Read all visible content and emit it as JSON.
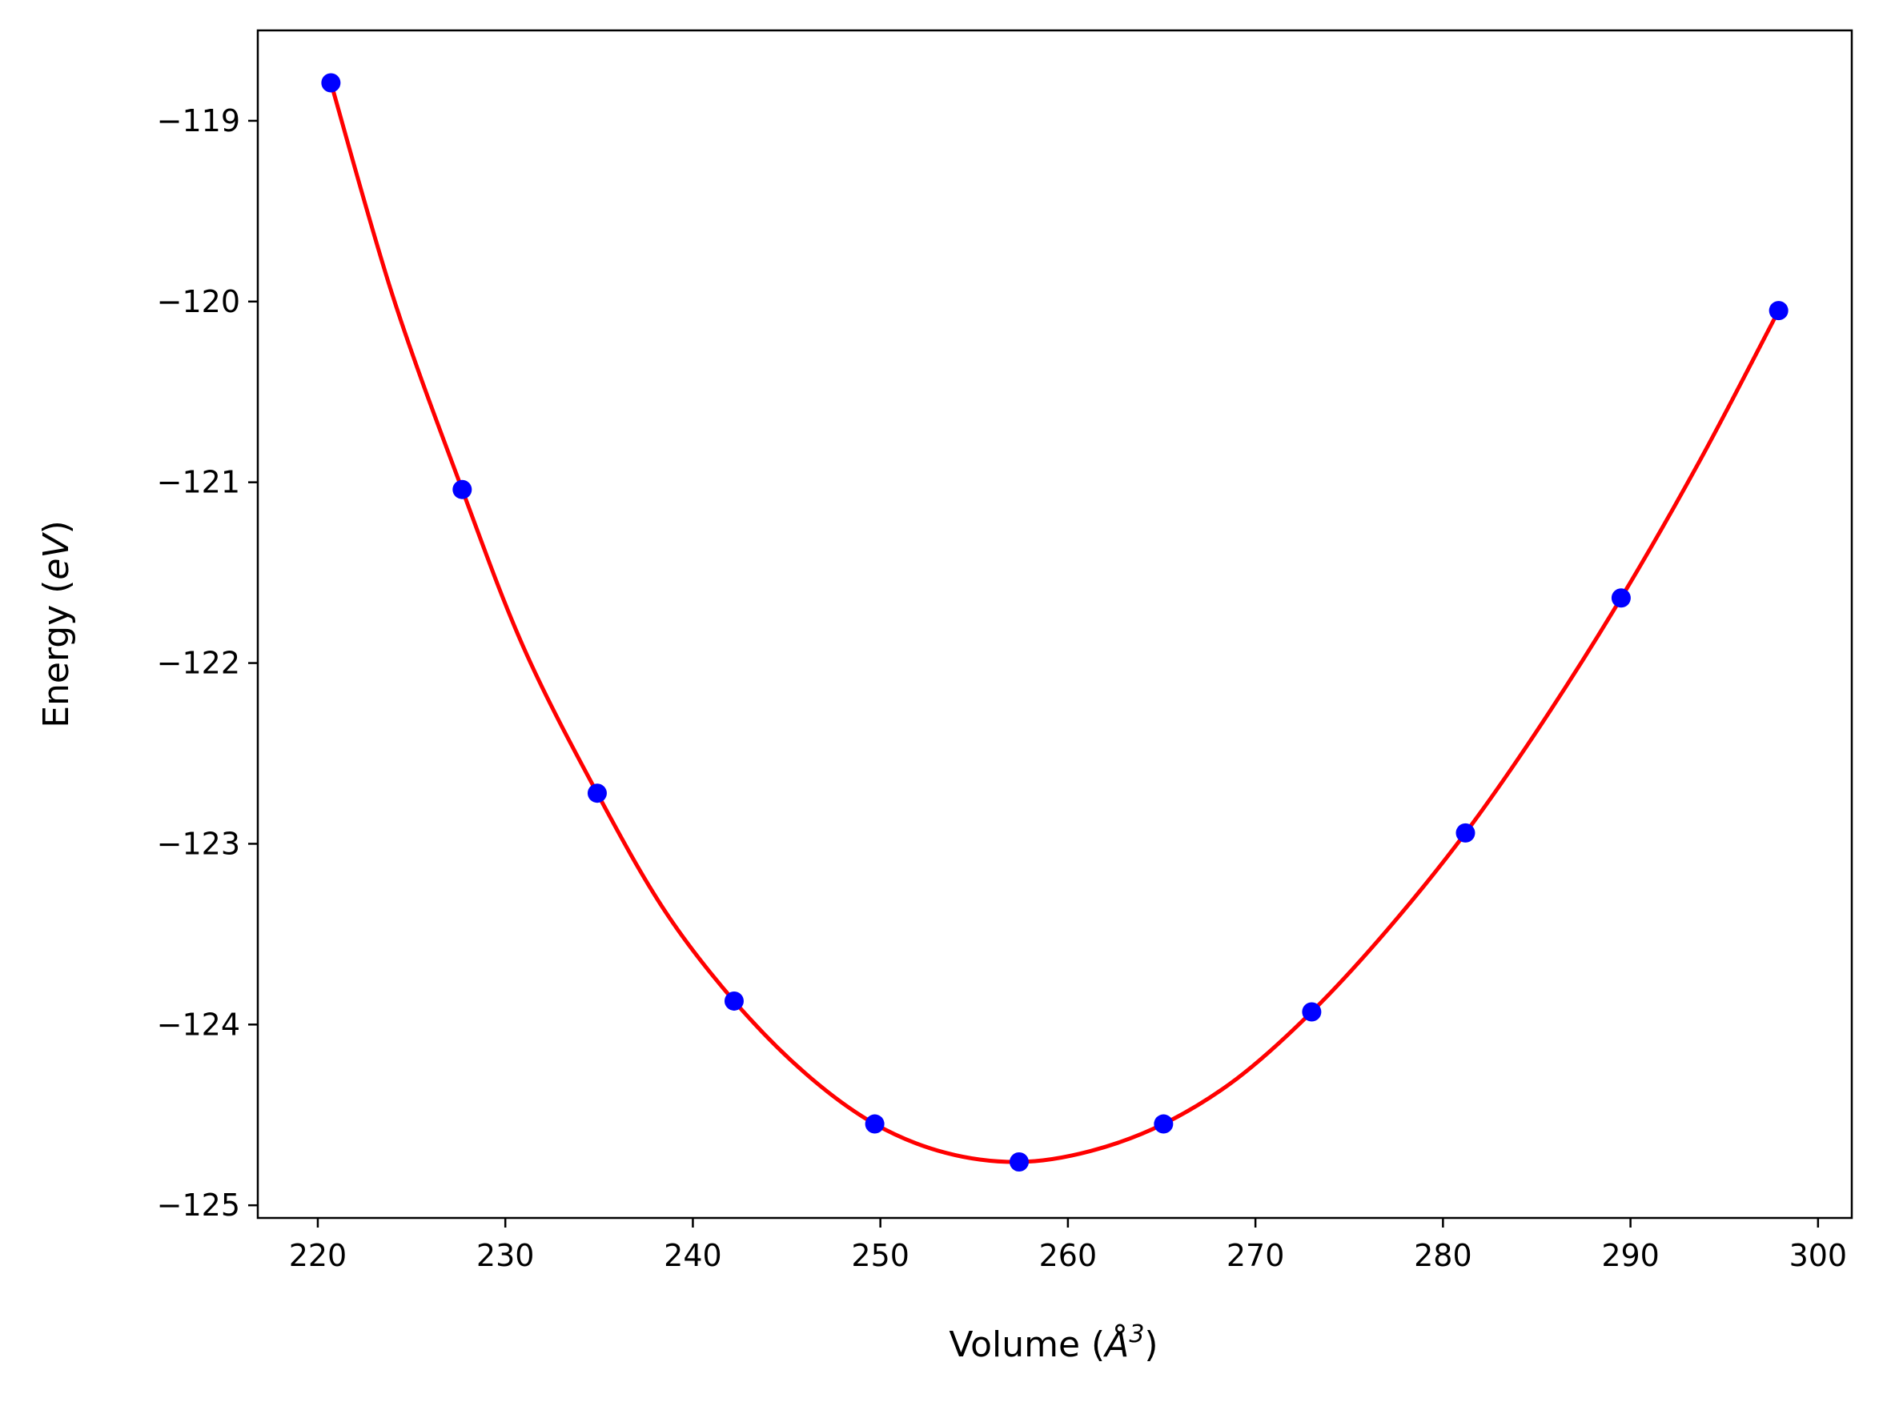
{
  "chart_data": {
    "type": "line",
    "title": "",
    "xlabel": "Volume (",
    "xlabel_symbol": "Å",
    "xlabel_exponent": "3",
    "xlabel_close": ")",
    "ylabel": "Energy (",
    "ylabel_unit": "eV",
    "ylabel_close": ")",
    "xlim": [
      216.8,
      301.8
    ],
    "ylim": [
      -125.07,
      -118.5
    ],
    "xticks": [
      220,
      230,
      240,
      250,
      260,
      270,
      280,
      290,
      300
    ],
    "xtick_labels": [
      "220",
      "230",
      "240",
      "250",
      "260",
      "270",
      "280",
      "290",
      "300"
    ],
    "yticks": [
      -119,
      -120,
      -121,
      -122,
      -123,
      -124,
      -125
    ],
    "ytick_labels": [
      "−119",
      "−120",
      "−121",
      "−122",
      "−123",
      "−124",
      "−125"
    ],
    "grid": false,
    "series": [
      {
        "kind": "points",
        "color": "#0000ff",
        "points": [
          [
            220.7,
            -118.79
          ],
          [
            227.7,
            -121.04
          ],
          [
            234.9,
            -122.72
          ],
          [
            242.2,
            -123.87
          ],
          [
            249.7,
            -124.55
          ],
          [
            257.4,
            -124.76
          ],
          [
            265.1,
            -124.55
          ],
          [
            273.0,
            -123.93
          ],
          [
            281.2,
            -122.94
          ],
          [
            289.5,
            -121.64
          ],
          [
            297.9,
            -120.05
          ]
        ]
      },
      {
        "kind": "fit-curve",
        "color": "#ff0000",
        "points": [
          [
            220.7,
            -118.79
          ],
          [
            224.0,
            -119.97
          ],
          [
            227.7,
            -121.04
          ],
          [
            231.0,
            -121.92
          ],
          [
            234.9,
            -122.72
          ],
          [
            238.5,
            -123.37
          ],
          [
            242.2,
            -123.87
          ],
          [
            246.0,
            -124.27
          ],
          [
            249.7,
            -124.55
          ],
          [
            253.5,
            -124.71
          ],
          [
            257.4,
            -124.76
          ],
          [
            261.2,
            -124.7
          ],
          [
            265.1,
            -124.55
          ],
          [
            269.0,
            -124.3
          ],
          [
            273.0,
            -123.93
          ],
          [
            277.0,
            -123.48
          ],
          [
            281.2,
            -122.94
          ],
          [
            285.3,
            -122.33
          ],
          [
            289.5,
            -121.64
          ],
          [
            293.7,
            -120.88
          ],
          [
            297.9,
            -120.05
          ]
        ]
      }
    ]
  }
}
